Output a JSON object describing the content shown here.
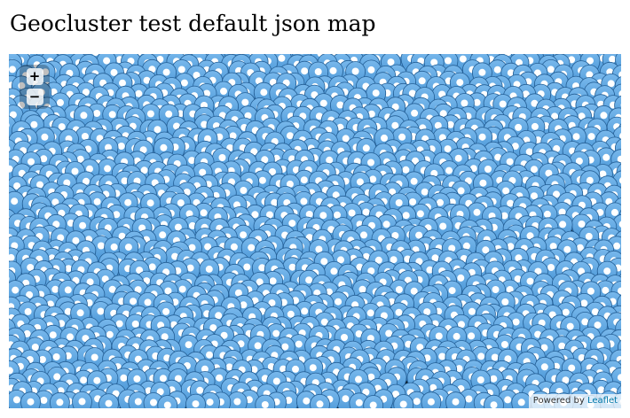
{
  "page": {
    "title": "Geocluster test default json map"
  },
  "map": {
    "zoom_in_label": "+",
    "zoom_out_label": "−",
    "attribution_prefix": "Powered by",
    "attribution_link": "Leaflet",
    "marker_icon": "map-marker-icon",
    "colors": {
      "marker_fill": "#3f8fd2",
      "marker_highlight": "#78b8ec",
      "marker_stroke": "#245f96",
      "marker_dot": "#ffffff",
      "map_background": "#0d1518",
      "attribution_link": "#0078a8"
    }
  }
}
